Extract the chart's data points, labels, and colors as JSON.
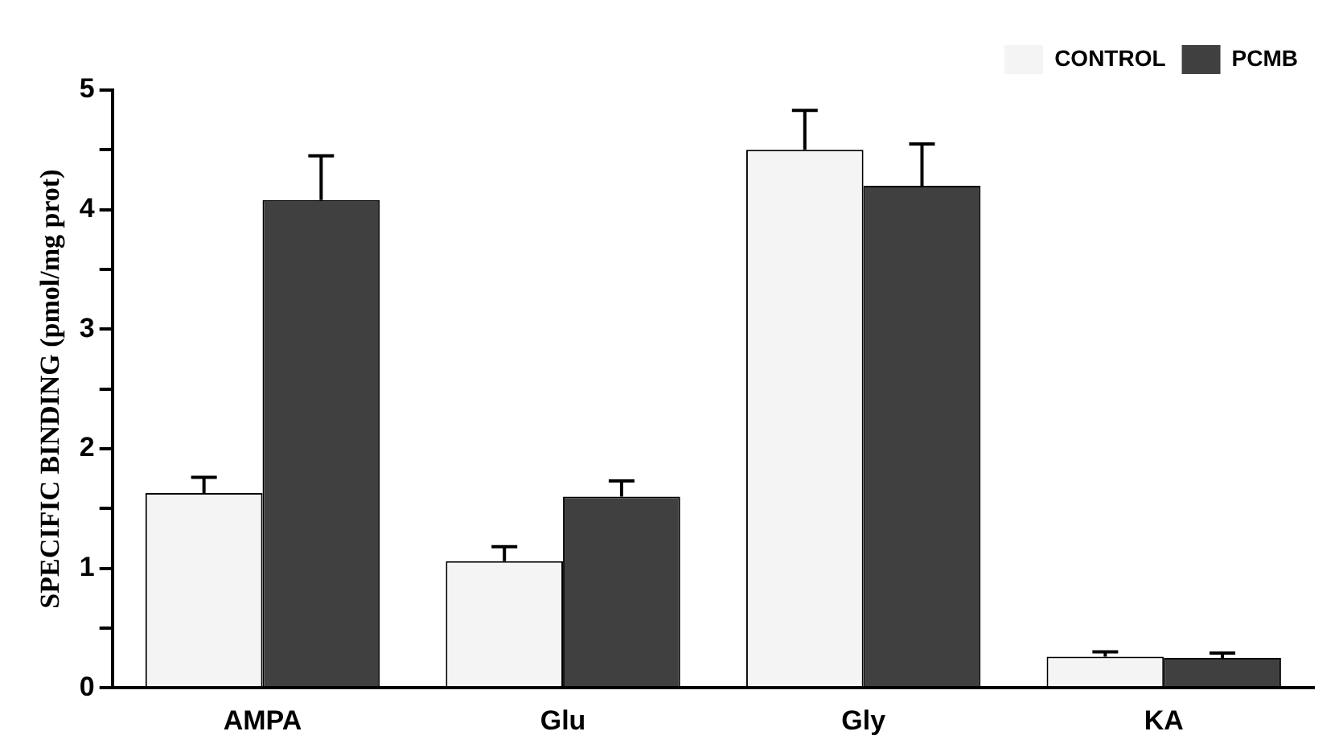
{
  "chart_data": {
    "type": "bar",
    "ylabel": "SPECIFIC BINDING (pmol/mg prot)",
    "categories": [
      "AMPA",
      "Glu",
      "Gly",
      "KA"
    ],
    "series": [
      {
        "name": "CONTROL",
        "color": "#f4f4f4",
        "values": [
          1.63,
          1.06,
          4.5,
          0.26
        ],
        "errors": [
          [
            1.63,
            1.76
          ],
          [
            1.06,
            1.18
          ],
          [
            4.5,
            4.83
          ],
          [
            0.26,
            0.3
          ]
        ]
      },
      {
        "name": "PCMB",
        "color": "#404040",
        "values": [
          4.08,
          1.6,
          4.2,
          0.25
        ],
        "errors": [
          [
            4.08,
            4.45
          ],
          [
            1.6,
            1.73
          ],
          [
            4.2,
            4.55
          ],
          [
            0.25,
            0.29
          ]
        ]
      }
    ],
    "ylim": [
      0,
      5
    ],
    "yticks": [
      0,
      {
        "value": 0.5,
        "label": null
      },
      1,
      {
        "value": 1.5,
        "label": null
      },
      2,
      {
        "value": 2.5,
        "label": null
      },
      3,
      {
        "value": 3.5,
        "label": null
      },
      4,
      {
        "value": 4.5,
        "label": null
      },
      5
    ],
    "grid": false,
    "legend": "top right"
  }
}
